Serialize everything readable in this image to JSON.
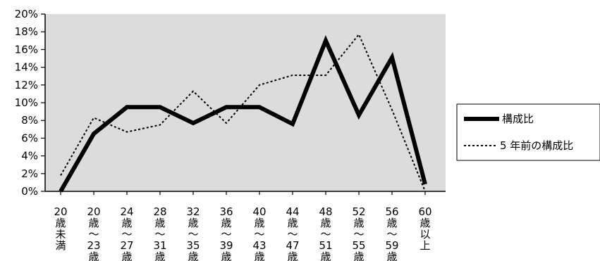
{
  "chart_data": {
    "type": "line",
    "categories": [
      [
        "20",
        "歳",
        "未",
        "満"
      ],
      [
        "20",
        "歳",
        "～",
        "23",
        "歳"
      ],
      [
        "24",
        "歳",
        "～",
        "27",
        "歳"
      ],
      [
        "28",
        "歳",
        "～",
        "31",
        "歳"
      ],
      [
        "32",
        "歳",
        "～",
        "35",
        "歳"
      ],
      [
        "36",
        "歳",
        "～",
        "39",
        "歳"
      ],
      [
        "40",
        "歳",
        "～",
        "43",
        "歳"
      ],
      [
        "44",
        "歳",
        "～",
        "47",
        "歳"
      ],
      [
        "48",
        "歳",
        "～",
        "51",
        "歳"
      ],
      [
        "52",
        "歳",
        "～",
        "55",
        "歳"
      ],
      [
        "56",
        "歳",
        "～",
        "59",
        "歳"
      ],
      [
        "60",
        "歳",
        "以",
        "上"
      ]
    ],
    "series": [
      {
        "name": "構成比",
        "style": "solid-thick",
        "color": "#000000",
        "values": [
          0,
          6.5,
          9.5,
          9.5,
          7.7,
          9.5,
          9.5,
          7.6,
          17.0,
          8.6,
          15.1,
          0.8
        ]
      },
      {
        "name": "5 年前の構成比",
        "style": "dotted",
        "color": "#000000",
        "values": [
          1.8,
          8.3,
          6.7,
          7.5,
          11.3,
          7.7,
          12.0,
          13.1,
          13.1,
          17.7,
          9.2,
          0
        ]
      }
    ],
    "ylim": [
      0,
      20
    ],
    "yticks": [
      "0%",
      "2%",
      "4%",
      "6%",
      "8%",
      "10%",
      "12%",
      "14%",
      "16%",
      "18%",
      "20%"
    ],
    "plot_background": "#dcdcdc",
    "grid": false,
    "legend_position": "right"
  }
}
